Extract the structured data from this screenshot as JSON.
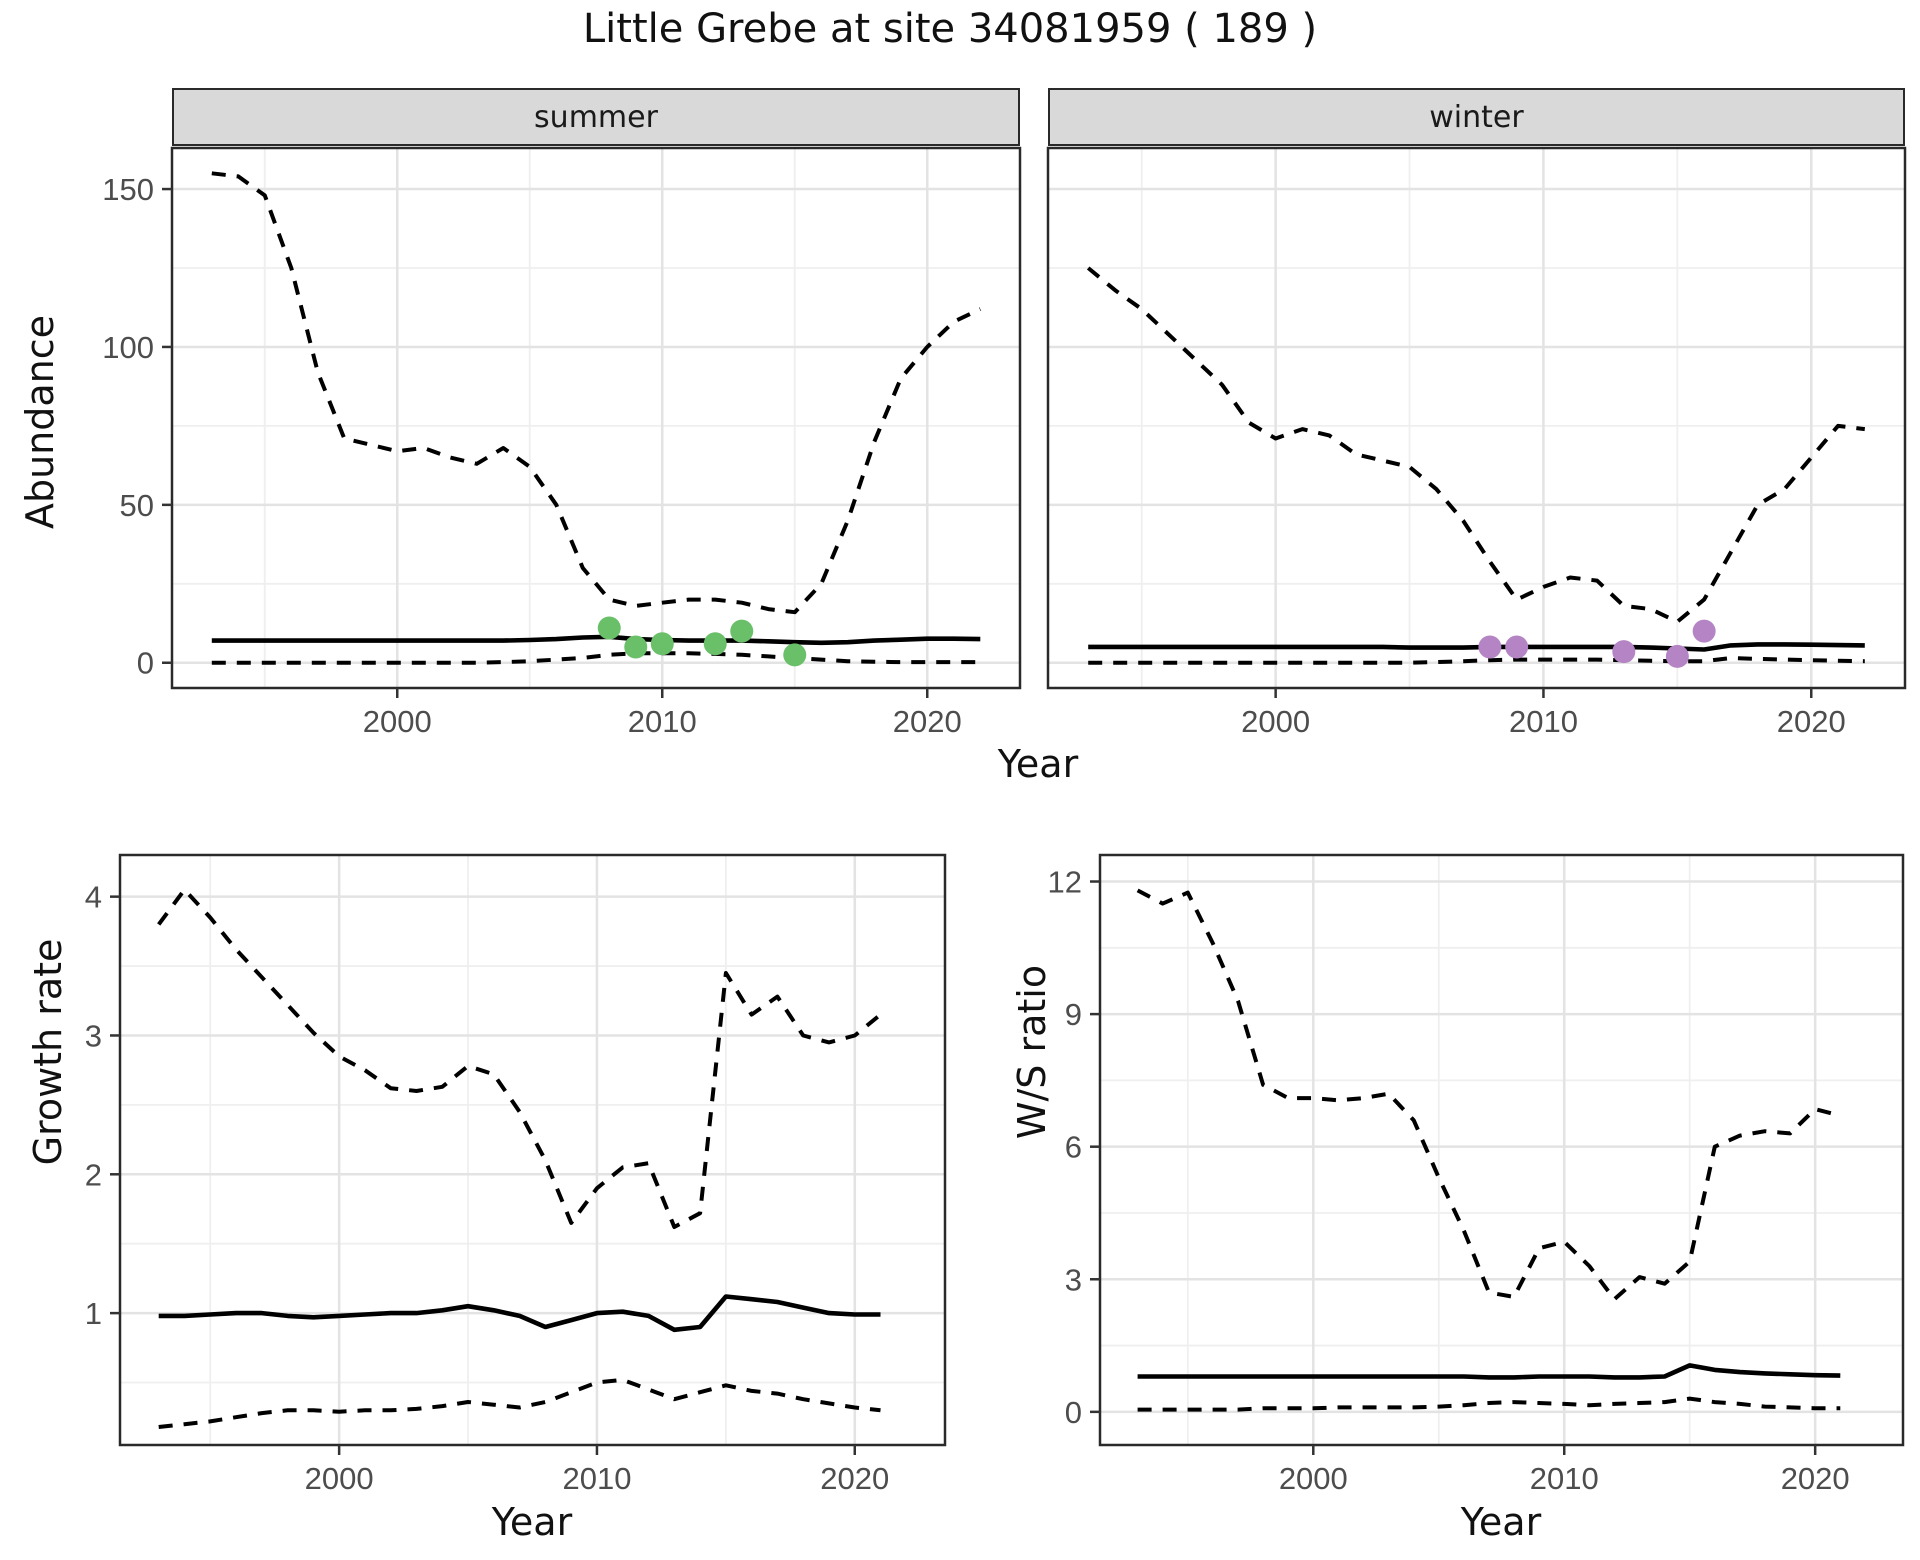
{
  "title": "Little Grebe at site 34081959 ( 189 )",
  "facets": {
    "summer": "summer",
    "winter": "winter"
  },
  "axis_titles": {
    "abundance": "Abundance",
    "year": "Year",
    "growth_rate": "Growth rate",
    "ws_ratio": "W/S ratio"
  },
  "colors": {
    "summer_points": "#6abf69",
    "winter_points": "#b584c4",
    "line": "#000000",
    "strip_bg": "#d9d9d9",
    "panel_border": "#2a2a2a",
    "grid_major": "#e3e3e3",
    "grid_minor": "#efefef",
    "tick_label": "#4d4d4d",
    "tick_mark": "#333333"
  },
  "chart_data": [
    {
      "id": "abundance-summer",
      "type": "line",
      "facet": "summer",
      "ylabel": "Abundance",
      "xlabel": "Year",
      "xlim": [
        1991.5,
        2023.5
      ],
      "ylim": [
        -8,
        163
      ],
      "xticks": [
        2000,
        2010,
        2020
      ],
      "yticks": [
        0,
        50,
        100,
        150
      ],
      "minor_xticks": [
        1995,
        2005,
        2015
      ],
      "minor_yticks": [
        25,
        75,
        125
      ],
      "x": [
        1993,
        1994,
        1995,
        1996,
        1997,
        1998,
        1999,
        2000,
        2001,
        2002,
        2003,
        2004,
        2005,
        2006,
        2007,
        2008,
        2009,
        2010,
        2011,
        2012,
        2013,
        2014,
        2015,
        2016,
        2017,
        2018,
        2019,
        2020,
        2021,
        2022
      ],
      "series": [
        {
          "name": "upper_95ci",
          "style": "dashed",
          "values": [
            155,
            154,
            148,
            125,
            92,
            71,
            69,
            67,
            68,
            65,
            63,
            68,
            62,
            50,
            30,
            20,
            18,
            19,
            20,
            20,
            19,
            17,
            16,
            25,
            45,
            70,
            90,
            100,
            108,
            112
          ]
        },
        {
          "name": "median",
          "style": "solid",
          "values": [
            7,
            7,
            7,
            7,
            7,
            7,
            7,
            7,
            7,
            7,
            7,
            7,
            7.2,
            7.5,
            8,
            8.2,
            7.5,
            7.2,
            7,
            7,
            7,
            6.8,
            6.5,
            6.3,
            6.5,
            7,
            7.3,
            7.6,
            7.6,
            7.5
          ]
        },
        {
          "name": "lower_95ci",
          "style": "dashed",
          "values": [
            0,
            0,
            0,
            0,
            0,
            0,
            0,
            0,
            0,
            0,
            0,
            0.2,
            0.5,
            1,
            1.5,
            2.5,
            3,
            3,
            3,
            2.8,
            2.5,
            2,
            1.5,
            1,
            0.5,
            0.3,
            0.2,
            0.2,
            0.2,
            0.2
          ]
        }
      ],
      "observed_points": {
        "color_key": "summer_points",
        "data": [
          [
            2008,
            11
          ],
          [
            2009,
            5
          ],
          [
            2010,
            6
          ],
          [
            2012,
            6
          ],
          [
            2013,
            10
          ],
          [
            2015,
            2.5
          ]
        ]
      }
    },
    {
      "id": "abundance-winter",
      "type": "line",
      "facet": "winter",
      "ylabel": "Abundance",
      "xlabel": "Year",
      "xlim": [
        1991.5,
        2023.5
      ],
      "ylim": [
        -8,
        163
      ],
      "xticks": [
        2000,
        2010,
        2020
      ],
      "yticks": [],
      "minor_xticks": [
        1995,
        2005,
        2015
      ],
      "minor_yticks": [
        25,
        75,
        125
      ],
      "grid_yticks": [
        0,
        50,
        100,
        150
      ],
      "x": [
        1993,
        1994,
        1995,
        1996,
        1997,
        1998,
        1999,
        2000,
        2001,
        2002,
        2003,
        2004,
        2005,
        2006,
        2007,
        2008,
        2009,
        2010,
        2011,
        2012,
        2013,
        2014,
        2015,
        2016,
        2017,
        2018,
        2019,
        2020,
        2021,
        2022
      ],
      "series": [
        {
          "name": "upper_95ci",
          "style": "dashed",
          "values": [
            125,
            118,
            112,
            104,
            96,
            88,
            76,
            71,
            74,
            72,
            66,
            64,
            62,
            55,
            45,
            32,
            20,
            24,
            27,
            26,
            18,
            17,
            13,
            20,
            35,
            50,
            55,
            65,
            75,
            74
          ]
        },
        {
          "name": "median",
          "style": "solid",
          "values": [
            5,
            5,
            5,
            5,
            5,
            5,
            5,
            5,
            5,
            5,
            5,
            5,
            4.8,
            4.8,
            4.8,
            5,
            5,
            5,
            5,
            5,
            5,
            4.8,
            4.5,
            4.2,
            5.5,
            5.8,
            5.8,
            5.7,
            5.6,
            5.5
          ]
        },
        {
          "name": "lower_95ci",
          "style": "dashed",
          "values": [
            0,
            0,
            0,
            0,
            0,
            0,
            0,
            0,
            0,
            0,
            0,
            0,
            0,
            0.2,
            0.5,
            0.8,
            1,
            1,
            1,
            1,
            0.8,
            0.6,
            0.5,
            0.5,
            1.5,
            1.2,
            1,
            0.8,
            0.6,
            0.5
          ]
        }
      ],
      "observed_points": {
        "color_key": "winter_points",
        "data": [
          [
            2008,
            5
          ],
          [
            2009,
            5
          ],
          [
            2013,
            3.5
          ],
          [
            2015,
            2
          ],
          [
            2016,
            10
          ]
        ]
      }
    },
    {
      "id": "growth-rate",
      "type": "line",
      "facet": null,
      "ylabel": "Growth rate",
      "xlabel": "Year",
      "xlim": [
        1991.5,
        2023.5
      ],
      "ylim": [
        0.05,
        4.3
      ],
      "xticks": [
        2000,
        2010,
        2020
      ],
      "yticks": [
        1,
        2,
        3,
        4
      ],
      "minor_xticks": [
        1995,
        2005,
        2015
      ],
      "minor_yticks": [
        0.5,
        1.5,
        2.5,
        3.5
      ],
      "x": [
        1993,
        1994,
        1995,
        1996,
        1997,
        1998,
        1999,
        2000,
        2001,
        2002,
        2003,
        2004,
        2005,
        2006,
        2007,
        2008,
        2009,
        2010,
        2011,
        2012,
        2013,
        2014,
        2015,
        2016,
        2017,
        2018,
        2019,
        2020,
        2021
      ],
      "series": [
        {
          "name": "upper_95ci",
          "style": "dashed",
          "values": [
            3.8,
            4.05,
            3.85,
            3.62,
            3.42,
            3.22,
            3.02,
            2.85,
            2.75,
            2.62,
            2.6,
            2.63,
            2.78,
            2.72,
            2.45,
            2.1,
            1.65,
            1.9,
            2.05,
            2.08,
            1.62,
            1.72,
            3.45,
            3.15,
            3.28,
            3.0,
            2.95,
            3.0,
            3.15
          ]
        },
        {
          "name": "median",
          "style": "solid",
          "values": [
            0.98,
            0.98,
            0.99,
            1.0,
            1.0,
            0.98,
            0.97,
            0.98,
            0.99,
            1.0,
            1.0,
            1.02,
            1.05,
            1.02,
            0.98,
            0.9,
            0.95,
            1.0,
            1.01,
            0.98,
            0.88,
            0.9,
            1.12,
            1.1,
            1.08,
            1.04,
            1.0,
            0.99,
            0.99
          ]
        },
        {
          "name": "lower_95ci",
          "style": "dashed",
          "values": [
            0.18,
            0.2,
            0.22,
            0.25,
            0.28,
            0.3,
            0.3,
            0.29,
            0.3,
            0.3,
            0.31,
            0.33,
            0.36,
            0.34,
            0.32,
            0.36,
            0.43,
            0.5,
            0.52,
            0.45,
            0.38,
            0.43,
            0.48,
            0.44,
            0.42,
            0.38,
            0.35,
            0.32,
            0.3
          ]
        }
      ]
    },
    {
      "id": "ws-ratio",
      "type": "line",
      "facet": null,
      "ylabel": "W/S ratio",
      "xlabel": "Year",
      "xlim": [
        1991.5,
        2023.5
      ],
      "ylim": [
        -0.75,
        12.6
      ],
      "xticks": [
        2000,
        2010,
        2020
      ],
      "yticks": [
        0,
        3,
        6,
        9,
        12
      ],
      "minor_xticks": [
        1995,
        2005,
        2015
      ],
      "minor_yticks": [
        1.5,
        4.5,
        7.5,
        10.5
      ],
      "x": [
        1993,
        1994,
        1995,
        1996,
        1997,
        1998,
        1999,
        2000,
        2001,
        2002,
        2003,
        2004,
        2005,
        2006,
        2007,
        2008,
        2009,
        2010,
        2011,
        2012,
        2013,
        2014,
        2015,
        2016,
        2017,
        2018,
        2019,
        2020,
        2021
      ],
      "series": [
        {
          "name": "upper_95ci",
          "style": "dashed",
          "values": [
            11.8,
            11.5,
            11.75,
            10.6,
            9.3,
            7.4,
            7.1,
            7.1,
            7.05,
            7.1,
            7.2,
            6.6,
            5.3,
            4.1,
            2.7,
            2.6,
            3.7,
            3.85,
            3.3,
            2.55,
            3.05,
            2.9,
            3.4,
            6.0,
            6.25,
            6.35,
            6.3,
            6.85,
            6.7
          ]
        },
        {
          "name": "median",
          "style": "solid",
          "values": [
            0.8,
            0.8,
            0.8,
            0.8,
            0.8,
            0.8,
            0.8,
            0.8,
            0.8,
            0.8,
            0.8,
            0.8,
            0.8,
            0.8,
            0.78,
            0.78,
            0.8,
            0.8,
            0.8,
            0.78,
            0.78,
            0.8,
            1.05,
            0.95,
            0.9,
            0.87,
            0.85,
            0.83,
            0.82
          ]
        },
        {
          "name": "lower_95ci",
          "style": "dashed",
          "values": [
            0.05,
            0.05,
            0.05,
            0.05,
            0.05,
            0.08,
            0.08,
            0.08,
            0.1,
            0.1,
            0.1,
            0.1,
            0.12,
            0.15,
            0.2,
            0.22,
            0.2,
            0.18,
            0.15,
            0.18,
            0.2,
            0.22,
            0.3,
            0.22,
            0.18,
            0.12,
            0.1,
            0.08,
            0.08
          ]
        }
      ]
    }
  ]
}
